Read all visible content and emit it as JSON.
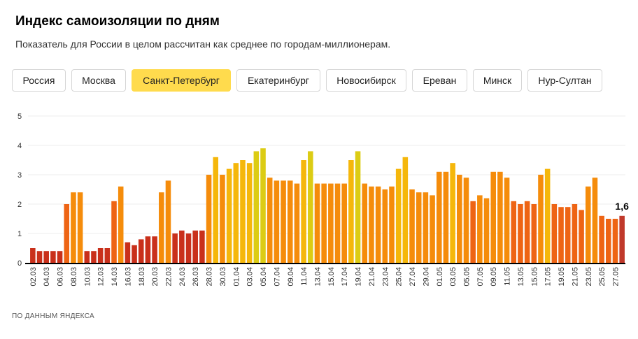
{
  "header": {
    "title": "Индекс самоизоляции по дням",
    "subtitle": "Показатель для России в целом рассчитан как среднее по городам-миллионерам."
  },
  "tabs": [
    {
      "label": "Россия",
      "active": false
    },
    {
      "label": "Москва",
      "active": false
    },
    {
      "label": "Санкт-Петербург",
      "active": true
    },
    {
      "label": "Екатеринбург",
      "active": false
    },
    {
      "label": "Новосибирск",
      "active": false
    },
    {
      "label": "Ереван",
      "active": false
    },
    {
      "label": "Минск",
      "active": false
    },
    {
      "label": "Нур-Султан",
      "active": false
    }
  ],
  "colors": {
    "active_tab": "#ffdb4d",
    "bar_very_low": "#c9301b",
    "bar_low": "#ee6414",
    "bar_mid": "#f58c0b",
    "bar_high": "#f5b70b",
    "bar_top": "#dccc14",
    "bar_last": "#c0392b"
  },
  "footer": "ПО ДАННЫМ ЯНДЕКСА",
  "chart_data": {
    "type": "bar",
    "title": "",
    "xlabel": "",
    "ylabel": "",
    "ylim": [
      0,
      5
    ],
    "yticks": [
      0,
      1,
      2,
      3,
      4,
      5
    ],
    "grid": true,
    "categories": [
      "02.03",
      "03.03",
      "04.03",
      "05.03",
      "06.03",
      "07.03",
      "08.03",
      "09.03",
      "10.03",
      "11.03",
      "12.03",
      "13.03",
      "14.03",
      "15.03",
      "16.03",
      "17.03",
      "18.03",
      "19.03",
      "20.03",
      "21.03",
      "22.03",
      "23.03",
      "24.03",
      "25.03",
      "26.03",
      "27.03",
      "28.03",
      "29.03",
      "30.03",
      "31.03",
      "01.04",
      "02.04",
      "03.04",
      "04.04",
      "05.04",
      "06.04",
      "07.04",
      "08.04",
      "09.04",
      "10.04",
      "11.04",
      "12.04",
      "13.04",
      "14.04",
      "15.04",
      "16.04",
      "17.04",
      "18.04",
      "19.04",
      "20.04",
      "21.04",
      "22.04",
      "23.04",
      "24.04",
      "25.04",
      "26.04",
      "27.04",
      "28.04",
      "29.04",
      "30.04",
      "01.05",
      "02.05",
      "03.05",
      "04.05",
      "05.05",
      "06.05",
      "07.05",
      "08.05",
      "09.05",
      "10.05",
      "11.05",
      "12.05",
      "13.05",
      "14.05",
      "15.05",
      "16.05",
      "17.05",
      "18.05",
      "19.05",
      "20.05",
      "21.05",
      "22.05",
      "23.05",
      "24.05",
      "25.05",
      "26.05",
      "27.05",
      "28.05"
    ],
    "values": [
      0.5,
      0.4,
      0.4,
      0.4,
      0.4,
      2.0,
      2.4,
      2.4,
      0.4,
      0.4,
      0.5,
      0.5,
      2.1,
      2.6,
      0.7,
      0.6,
      0.8,
      0.9,
      0.9,
      2.4,
      2.8,
      1.0,
      1.1,
      1.0,
      1.1,
      1.1,
      3.0,
      3.6,
      3.0,
      3.2,
      3.4,
      3.5,
      3.4,
      3.8,
      3.9,
      2.9,
      2.8,
      2.8,
      2.8,
      2.7,
      3.5,
      3.8,
      2.7,
      2.7,
      2.7,
      2.7,
      2.7,
      3.5,
      3.8,
      2.7,
      2.6,
      2.6,
      2.5,
      2.6,
      3.2,
      3.6,
      2.5,
      2.4,
      2.4,
      2.3,
      3.1,
      3.1,
      3.4,
      3.0,
      2.9,
      2.1,
      2.3,
      2.2,
      3.1,
      3.1,
      2.9,
      2.1,
      2.0,
      2.1,
      2.0,
      3.0,
      3.2,
      2.0,
      1.9,
      1.9,
      2.0,
      1.8,
      2.6,
      2.9,
      1.6,
      1.5,
      1.5,
      1.6
    ],
    "tick_labels_shown": [
      "02.03",
      "04.03",
      "06.03",
      "08.03",
      "10.03",
      "12.03",
      "14.03",
      "16.03",
      "18.03",
      "20.03",
      "22.03",
      "24.03",
      "26.03",
      "28.03",
      "30.03",
      "01.04",
      "03.04",
      "05.04",
      "07.04",
      "09.04",
      "11.04",
      "13.04",
      "15.04",
      "17.04",
      "19.04",
      "21.04",
      "23.04",
      "25.04",
      "27.04",
      "29.04",
      "01.05",
      "03.05",
      "05.05",
      "07.05",
      "09.05",
      "11.05",
      "13.05",
      "15.05",
      "17.05",
      "19.05",
      "21.05",
      "23.05",
      "25.05",
      "27.05"
    ],
    "annotation": "1,6"
  }
}
